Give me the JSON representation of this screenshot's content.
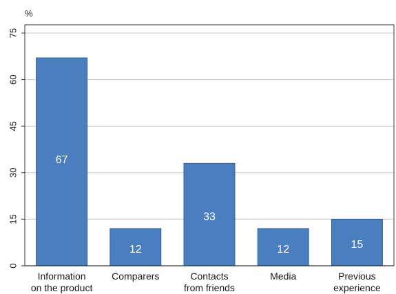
{
  "chart_data": {
    "type": "bar",
    "unit_label": "%",
    "categories": [
      [
        "Information",
        "on the product"
      ],
      [
        "Comparers"
      ],
      [
        "Contacts",
        "from friends"
      ],
      [
        "Media"
      ],
      [
        "Previous",
        "experience"
      ]
    ],
    "values": [
      67,
      12,
      33,
      12,
      15
    ],
    "data_labels": [
      "67",
      "12",
      "33",
      "12",
      "15"
    ],
    "ylim": [
      0,
      75
    ],
    "yticks": [
      0,
      15,
      30,
      45,
      60,
      75
    ],
    "grid": true,
    "bar_color": "#4a7ebf",
    "bar_edge_color": "#2f5f9e",
    "grid_color": "#c8c8c8",
    "axis_color": "#333333"
  }
}
